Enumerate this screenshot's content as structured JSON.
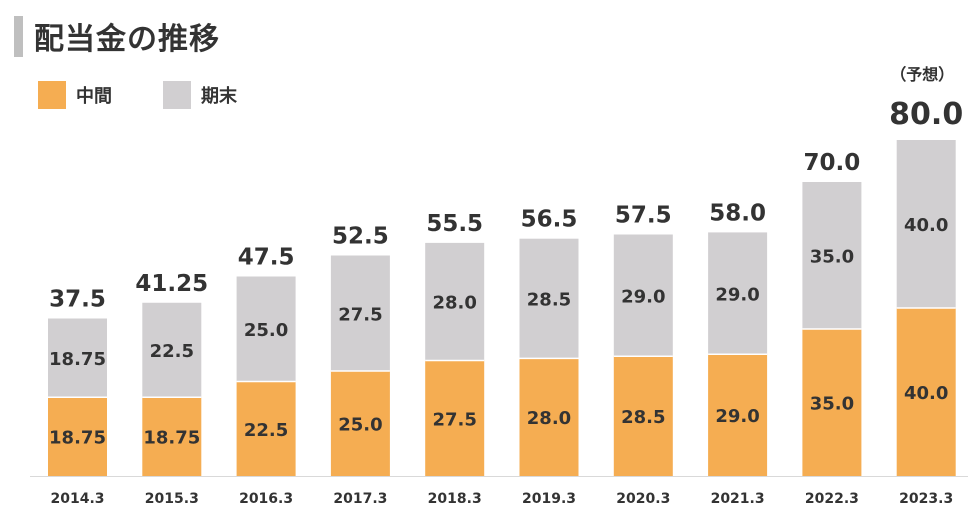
{
  "title": "配当金の推移",
  "colors": {
    "interim": "#f5ad52",
    "final": "#d1cfd1",
    "text": "#333333",
    "title_bar": "#bfbfbf"
  },
  "legend": [
    {
      "name": "中間",
      "color": "#f5ad52"
    },
    {
      "name": "期末",
      "color": "#d1cfd1"
    }
  ],
  "chart_data": {
    "type": "bar",
    "stacked": true,
    "categories": [
      "2014.3",
      "2015.3",
      "2016.3",
      "2017.3",
      "2018.3",
      "2019.3",
      "2020.3",
      "2021.3",
      "2022.3",
      "2023.3"
    ],
    "series": [
      {
        "name": "中間",
        "values": [
          18.75,
          18.75,
          22.5,
          25.0,
          27.5,
          28.0,
          28.5,
          29.0,
          35.0,
          40.0
        ],
        "labels": [
          "18.75",
          "18.75",
          "22.5",
          "25.0",
          "27.5",
          "28.0",
          "28.5",
          "29.0",
          "35.0",
          "40.0"
        ]
      },
      {
        "name": "期末",
        "values": [
          18.75,
          22.5,
          25.0,
          27.5,
          28.0,
          28.5,
          29.0,
          29.0,
          35.0,
          40.0
        ],
        "labels": [
          "18.75",
          "22.5",
          "25.0",
          "27.5",
          "28.0",
          "28.5",
          "29.0",
          "29.0",
          "35.0",
          "40.0"
        ]
      }
    ],
    "totals": [
      "37.5",
      "41.25",
      "47.5",
      "52.5",
      "55.5",
      "56.5",
      "57.5",
      "58.0",
      "70.0",
      "80.0"
    ],
    "forecast_note": "（予想）",
    "ylim": [
      0,
      80
    ],
    "grid": false,
    "legend_position": "top-left"
  }
}
